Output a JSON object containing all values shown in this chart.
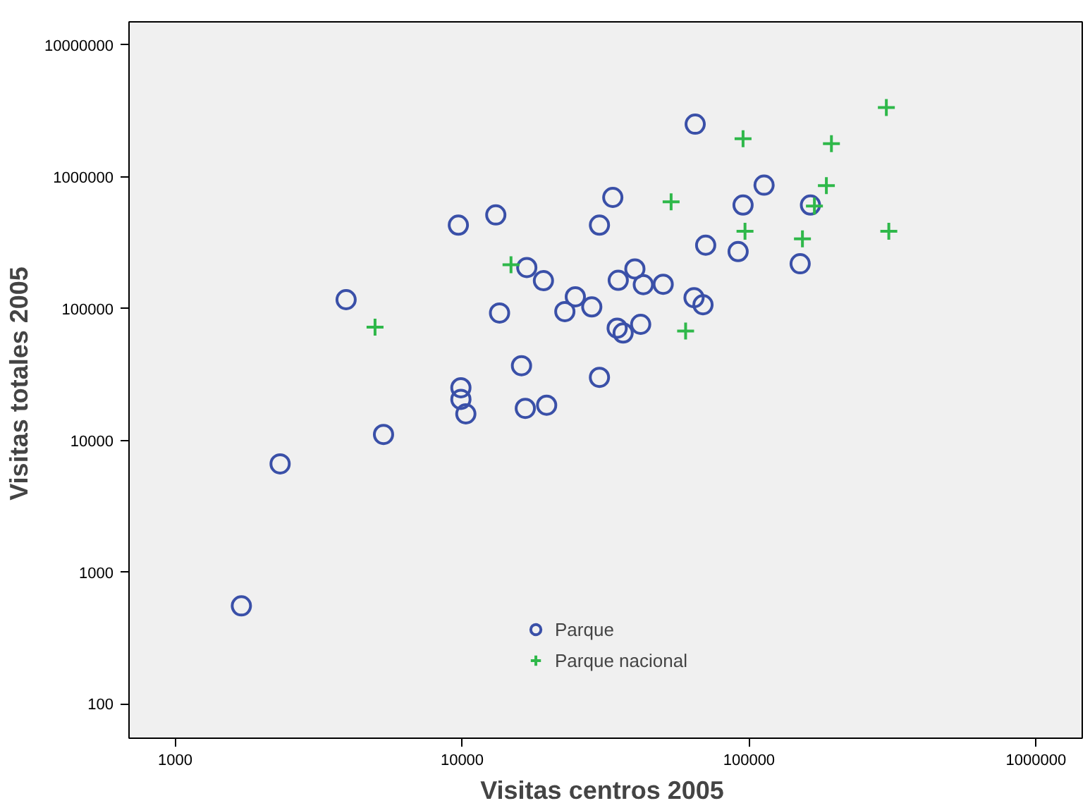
{
  "chart_data": {
    "type": "scatter",
    "xlabel": "Visitas centros  2005",
    "ylabel": "Visitas  totales 2005",
    "log": "xy",
    "grid": false,
    "legend": "bottom",
    "xlim": [
      690,
      1450000
    ],
    "ylim": [
      55,
      15000000
    ],
    "xticks": [
      1000,
      10000,
      100000,
      1000000
    ],
    "yticks": [
      100,
      1000,
      10000,
      100000,
      1000000,
      10000000
    ],
    "series": [
      {
        "name": "Parque",
        "color": "#3a50a8",
        "marker": "circle",
        "x": [
          1700,
          2320,
          5320,
          3940,
          9700,
          13100,
          13500,
          9900,
          9900,
          10300,
          16100,
          16600,
          19700,
          16800,
          19200,
          22800,
          28300,
          24800,
          30100,
          30100,
          33500,
          64900,
          112800,
          95300,
          163700,
          70600,
          91600,
          150700,
          40000,
          35000,
          42800,
          50200,
          64300,
          69100,
          34700,
          36400,
          41900
        ],
        "values": [
          555,
          6640,
          11100,
          117000,
          430000,
          514000,
          92700,
          25100,
          20500,
          15900,
          36900,
          17500,
          18500,
          205000,
          163000,
          95000,
          103000,
          123000,
          30100,
          430000,
          698000,
          2510000,
          865000,
          611000,
          611000,
          303000,
          271000,
          219000,
          200000,
          164000,
          152000,
          153000,
          121000,
          107000,
          71100,
          65300,
          76000
        ]
      },
      {
        "name": "Parque nacional",
        "color": "#2fb84a",
        "marker": "cross",
        "x": [
          4970,
          14800,
          301000,
          95300,
          193700,
          53500,
          186000,
          169000,
          96800,
          153500,
          307000,
          60100
        ],
        "values": [
          72300,
          215000,
          3360000,
          1945000,
          1785000,
          647000,
          857000,
          600000,
          386000,
          339000,
          386000,
          67600
        ]
      }
    ]
  }
}
